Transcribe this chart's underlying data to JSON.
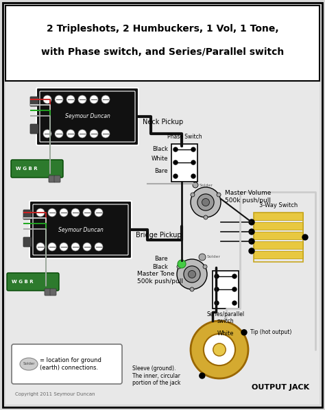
{
  "title_line1": "2 Tripleshots, 2 Humbuckers, 1 Vol, 1 Tone,",
  "title_line2": "with Phase switch, and Series/Parallel switch",
  "bg_color": "#d8d8d8",
  "inner_bg": "#e8e8e8",
  "border_color": "#000000",
  "neck_pickup_label": "Neck Pickup",
  "bridge_pickup_label": "Bridge Pickup",
  "seymour_duncan_label": "Seymour Duncan",
  "phase_switch_label": "Phase Switch",
  "master_volume_label": "Master Volume\n500k push/pull",
  "three_way_label": "3-Way Switch",
  "master_tone_label": "Master Tone\n500k push/pull",
  "series_parallel_label": "Series/parallel\nswitch",
  "output_jack_label": "OUTPUT JACK",
  "tip_label": "Tip (hot output)",
  "sleeve_label": "Sleeve (ground).\nThe inner, circular\nportion of the jack",
  "solder_label": "= location for ground\n(earth) connections.",
  "copyright_label": "Copyright 2011 Seymour Duncan",
  "pcb_color": "#2d7a2d",
  "wire_black": "#111111",
  "wire_white": "#cccccc",
  "wire_red": "#cc2222",
  "wire_green": "#22aa22",
  "wire_bare": "#aaaaaa",
  "pickup_face": "#111111",
  "switch_yellow": "#e8c840",
  "switch_yellow_dark": "#c8a820",
  "pot_outer": "#bbbbbb",
  "pot_inner": "#888888",
  "jack_gold": "#d4aa30",
  "jack_gold_light": "#e8c84a",
  "solder_dot_gray": "#aaaaaa",
  "solder_dot_green": "#44cc44"
}
